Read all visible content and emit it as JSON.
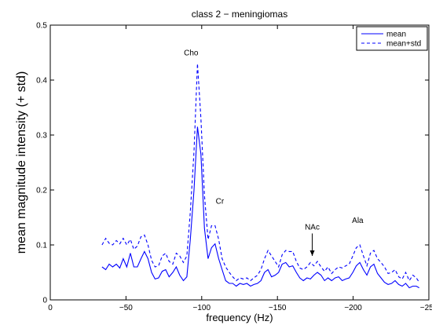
{
  "chart_data": {
    "type": "line",
    "title": "class 2 − meningiomas",
    "xlabel": "frequency (Hz)",
    "ylabel": "mean magnitude intensity (+ std)",
    "xlim": [
      0,
      -250
    ],
    "ylim": [
      0,
      0.5
    ],
    "x_ticks": [
      0,
      -50,
      -100,
      -150,
      -200,
      -250
    ],
    "x_tick_labels": [
      "0",
      "−50",
      "−100",
      "−150",
      "−200",
      "−250"
    ],
    "y_ticks": [
      0,
      0.1,
      0.2,
      0.3,
      0.4,
      0.5
    ],
    "y_tick_labels": [
      "0",
      "0.1",
      "0.2",
      "0.3",
      "0.4",
      "0.5"
    ],
    "grid": false,
    "legend_position": "top-right",
    "series": [
      {
        "name": "mean",
        "style": "solid",
        "color": "#0000ff",
        "x": [
          -34.2,
          -36.6,
          -38.9,
          -41.2,
          -43.6,
          -45.9,
          -48.2,
          -50.5,
          -52.9,
          -55.2,
          -57.5,
          -59.9,
          -62.2,
          -64.5,
          -66.9,
          -69.2,
          -71.5,
          -73.9,
          -76.2,
          -78.5,
          -80.9,
          -83.2,
          -85.5,
          -87.9,
          -90.2,
          -92.5,
          -94.9,
          -97.2,
          -99.5,
          -101.8,
          -104.2,
          -106.5,
          -108.8,
          -111.2,
          -113.5,
          -115.8,
          -118.2,
          -120.5,
          -122.8,
          -125.2,
          -127.5,
          -129.8,
          -132.2,
          -134.5,
          -136.8,
          -139.1,
          -141.5,
          -143.8,
          -146.1,
          -148.5,
          -150.8,
          -153.1,
          -155.5,
          -157.8,
          -160.1,
          -162.5,
          -164.8,
          -167.1,
          -169.5,
          -171.8,
          -174.1,
          -176.4,
          -178.8,
          -181.1,
          -183.4,
          -185.8,
          -188.1,
          -190.4,
          -192.8,
          -195.1,
          -197.4,
          -199.8,
          -202.1,
          -204.4,
          -206.8,
          -209.1,
          -211.4,
          -213.7,
          -216.1,
          -218.4,
          -220.7,
          -223.1,
          -225.4,
          -227.7,
          -230.1,
          -232.4,
          -234.7,
          -237.1,
          -239.4,
          -241.7,
          -243.6
        ],
        "values": [
          0.06,
          0.055,
          0.065,
          0.06,
          0.065,
          0.058,
          0.075,
          0.06,
          0.085,
          0.06,
          0.06,
          0.075,
          0.088,
          0.075,
          0.05,
          0.038,
          0.04,
          0.052,
          0.055,
          0.042,
          0.05,
          0.06,
          0.045,
          0.035,
          0.042,
          0.11,
          0.2,
          0.315,
          0.265,
          0.13,
          0.075,
          0.095,
          0.102,
          0.075,
          0.055,
          0.035,
          0.03,
          0.03,
          0.025,
          0.03,
          0.028,
          0.03,
          0.025,
          0.028,
          0.03,
          0.035,
          0.05,
          0.055,
          0.042,
          0.045,
          0.05,
          0.065,
          0.068,
          0.06,
          0.062,
          0.05,
          0.04,
          0.035,
          0.04,
          0.038,
          0.045,
          0.05,
          0.045,
          0.035,
          0.04,
          0.035,
          0.04,
          0.042,
          0.035,
          0.038,
          0.04,
          0.05,
          0.062,
          0.068,
          0.055,
          0.045,
          0.06,
          0.065,
          0.048,
          0.04,
          0.032,
          0.028,
          0.03,
          0.035,
          0.028,
          0.025,
          0.03,
          0.022,
          0.025,
          0.025,
          0.022
        ]
      },
      {
        "name": "mean+std",
        "style": "dashed",
        "color": "#0000ff",
        "x": [
          -34.2,
          -36.6,
          -38.9,
          -41.2,
          -43.6,
          -45.9,
          -48.2,
          -50.5,
          -52.9,
          -55.2,
          -57.5,
          -59.9,
          -62.2,
          -64.5,
          -66.9,
          -69.2,
          -71.5,
          -73.9,
          -76.2,
          -78.5,
          -80.9,
          -83.2,
          -85.5,
          -87.9,
          -90.2,
          -92.5,
          -94.9,
          -97.2,
          -99.5,
          -101.8,
          -104.2,
          -106.5,
          -108.8,
          -111.2,
          -113.5,
          -115.8,
          -118.2,
          -120.5,
          -122.8,
          -125.2,
          -127.5,
          -129.8,
          -132.2,
          -134.5,
          -136.8,
          -139.1,
          -141.5,
          -143.8,
          -146.1,
          -148.5,
          -150.8,
          -153.1,
          -155.5,
          -157.8,
          -160.1,
          -162.5,
          -164.8,
          -167.1,
          -169.5,
          -171.8,
          -174.1,
          -176.4,
          -178.8,
          -181.1,
          -183.4,
          -185.8,
          -188.1,
          -190.4,
          -192.8,
          -195.1,
          -197.4,
          -199.8,
          -202.1,
          -204.4,
          -206.8,
          -209.1,
          -211.4,
          -213.7,
          -216.1,
          -218.4,
          -220.7,
          -223.1,
          -225.4,
          -227.7,
          -230.1,
          -232.4,
          -234.7,
          -237.1,
          -239.4,
          -241.7,
          -243.6
        ],
        "values": [
          0.1,
          0.112,
          0.103,
          0.1,
          0.108,
          0.102,
          0.112,
          0.1,
          0.11,
          0.092,
          0.098,
          0.115,
          0.118,
          0.1,
          0.072,
          0.06,
          0.062,
          0.08,
          0.085,
          0.07,
          0.065,
          0.085,
          0.08,
          0.068,
          0.08,
          0.16,
          0.27,
          0.43,
          0.33,
          0.19,
          0.11,
          0.135,
          0.135,
          0.11,
          0.075,
          0.06,
          0.05,
          0.042,
          0.035,
          0.04,
          0.038,
          0.04,
          0.035,
          0.04,
          0.045,
          0.055,
          0.075,
          0.09,
          0.08,
          0.07,
          0.06,
          0.082,
          0.09,
          0.088,
          0.088,
          0.07,
          0.058,
          0.055,
          0.06,
          0.068,
          0.062,
          0.07,
          0.06,
          0.052,
          0.06,
          0.048,
          0.055,
          0.06,
          0.058,
          0.062,
          0.065,
          0.08,
          0.095,
          0.1,
          0.08,
          0.062,
          0.085,
          0.09,
          0.075,
          0.068,
          0.06,
          0.048,
          0.05,
          0.055,
          0.042,
          0.038,
          0.05,
          0.035,
          0.045,
          0.04,
          0.032
        ]
      }
    ],
    "annotations": [
      {
        "text": "Cho",
        "x": -93,
        "y": 0.445
      },
      {
        "text": "Cr",
        "x": -112,
        "y": 0.175
      },
      {
        "text": "NAc",
        "x": -173,
        "y": 0.128,
        "arrow_to_y": 0.08
      },
      {
        "text": "Ala",
        "x": -203,
        "y": 0.14
      }
    ]
  }
}
